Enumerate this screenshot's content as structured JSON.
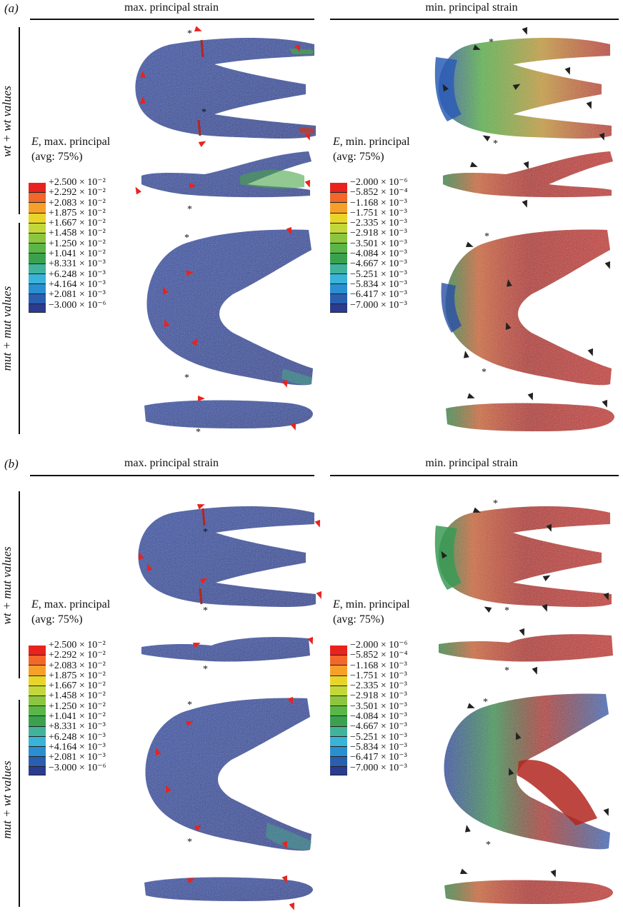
{
  "panels": [
    {
      "letter": "(a)",
      "columns": [
        "max. principal strain",
        "min. principal strain"
      ],
      "rows": [
        "wt + wt values",
        "mut + mut values"
      ]
    },
    {
      "letter": "(b)",
      "columns": [
        "max. principal strain",
        "min. principal strain"
      ],
      "rows": [
        "wt + mut values",
        "mut + wt values"
      ]
    }
  ],
  "legend_max": {
    "title_var": "E",
    "title_rest": ", max. principal",
    "avg": "(avg: 75%)",
    "ticks": [
      "+2.500 × 10⁻²",
      "+2.292 × 10⁻²",
      "+2.083 × 10⁻²",
      "+1.875 × 10⁻²",
      "+1.667 × 10⁻²",
      "+1.458 × 10⁻²",
      "+1.250 × 10⁻²",
      "+1.041 × 10⁻²",
      "+8.331 × 10⁻³",
      "+6.248 × 10⁻³",
      "+4.164 × 10⁻³",
      "+2.081 × 10⁻³",
      "−3.000 × 10⁻⁶"
    ]
  },
  "legend_min": {
    "title_var": "E",
    "title_rest": ", min. principal",
    "avg": "(avg: 75%)",
    "ticks": [
      "−2.000 × 10⁻⁶",
      "−5.852 × 10⁻⁴",
      "−1.168 × 10⁻³",
      "−1.751 × 10⁻³",
      "−2.335 × 10⁻³",
      "−2.918 × 10⁻³",
      "−3.501 × 10⁻³",
      "−4.084 × 10⁻³",
      "−4.667 × 10⁻³",
      "−5.251 × 10⁻³",
      "−5.834 × 10⁻³",
      "−6.417 × 10⁻³",
      "−7.000 × 10⁻³"
    ]
  },
  "colorscale": [
    "#e8231e",
    "#f2672a",
    "#f6a02a",
    "#e9d52a",
    "#c4d73a",
    "#8cc63f",
    "#5ab646",
    "#3aa24f",
    "#41b39a",
    "#3ab3d8",
    "#2a8fd0",
    "#2a5fb0",
    "#2a3c8f"
  ],
  "asterisk": "*"
}
